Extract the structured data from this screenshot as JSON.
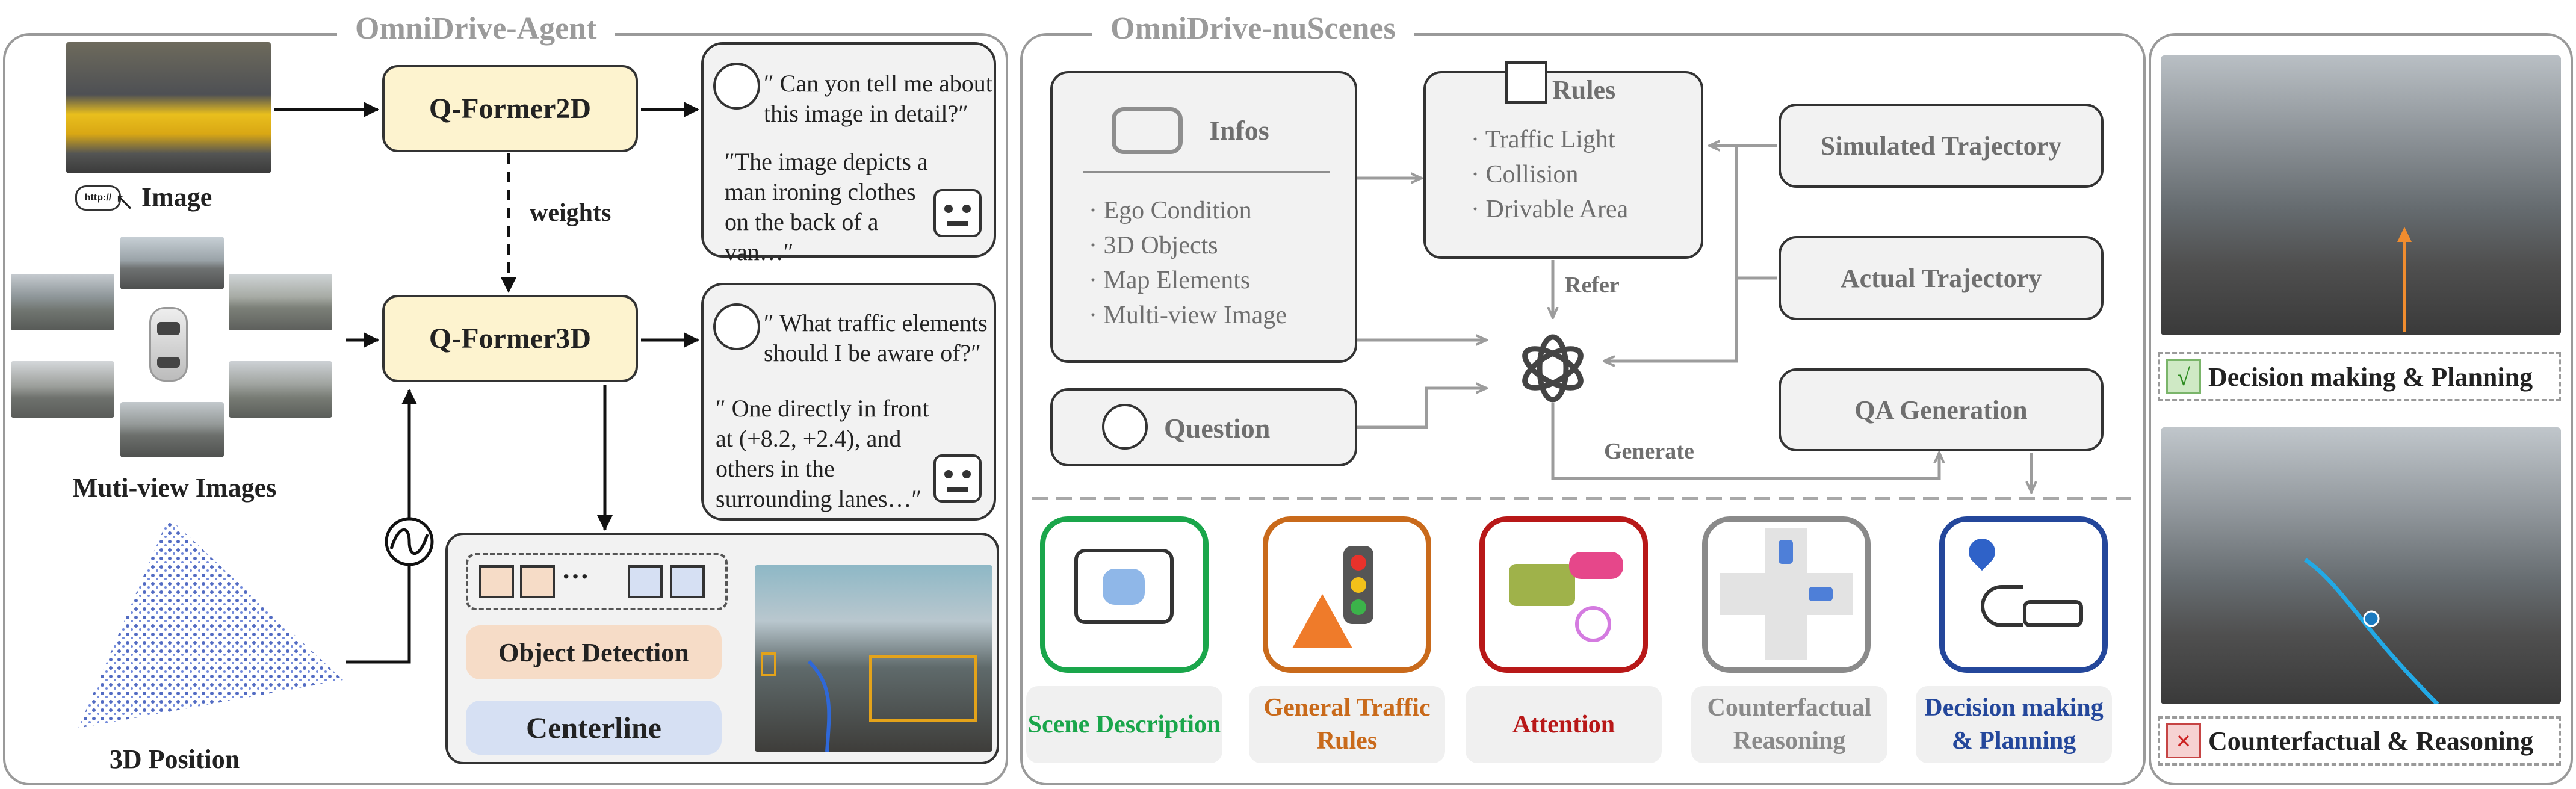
{
  "agent": {
    "title": "OmniDrive-Agent",
    "image_label": "Image",
    "http_badge": "http://",
    "multiview_label": "Muti-view Images",
    "position_label": "3D Position",
    "qformer2d": "Q-Former2D",
    "qformer3d": "Q-Former3D",
    "weights_label": "weights",
    "chat2d": {
      "question": "″ Can yon tell me about this image in detail?″",
      "answer": "″The image depicts a man ironing clothes on the back of a van…″"
    },
    "chat3d": {
      "question": "″ What traffic elements should I be aware of?″",
      "answer": "″ One directly in front at (+8.2, +2.4), and others in the surrounding lanes…″"
    },
    "tokens_ellipsis": "···",
    "object_detection": "Object Detection",
    "centerline": "Centerline"
  },
  "nuscenes": {
    "title": "OmniDrive-nuScenes",
    "infos": {
      "header": "Infos",
      "items": [
        "· Ego Condition",
        "· 3D Objects",
        "· Map Elements",
        "· Multi-view Image"
      ]
    },
    "question": "Question",
    "rules": {
      "header": "Rules",
      "items": [
        "· Traffic Light",
        "· Collision",
        "· Drivable Area"
      ]
    },
    "simulated": "Simulated Trajectory",
    "actual": "Actual Trajectory",
    "qa_generation": "QA Generation",
    "refer": "Refer",
    "generate": "Generate",
    "tasks": [
      {
        "label": "Scene Description",
        "color": "#1aa64b"
      },
      {
        "label": "General Traffic Rules",
        "color": "#c96a1b"
      },
      {
        "label": "Attention",
        "color": "#b81818"
      },
      {
        "label": "Counterfactual Reasoning",
        "color": "#8a8a8a"
      },
      {
        "label": "Decision making & Planning",
        "color": "#24479b"
      }
    ]
  },
  "right": {
    "planning_mark": "√",
    "planning_label": "Decision making & Planning",
    "counterfactual_mark": "×",
    "counterfactual_label": "Counterfactual & Reasoning"
  }
}
